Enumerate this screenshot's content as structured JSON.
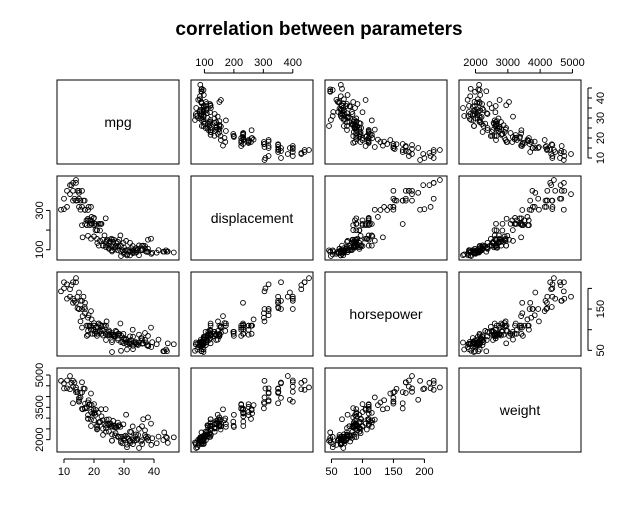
{
  "chart_data": {
    "type": "scatter",
    "title": "correlation between parameters",
    "variables": [
      "mpg",
      "displacement",
      "horsepower",
      "weight"
    ],
    "ranges": {
      "mpg": [
        9,
        47
      ],
      "displacement": [
        68,
        455
      ],
      "horsepower": [
        46,
        230
      ],
      "weight": [
        1613,
        5140
      ]
    },
    "ticks": {
      "mpg": [
        10,
        20,
        30,
        40
      ],
      "displacement": [
        100,
        200,
        300,
        400
      ],
      "horsepower": [
        50,
        100,
        150,
        200
      ],
      "weight": [
        2000,
        3000,
        4000,
        5000
      ]
    },
    "tick_labels": {
      "top": {
        "displacement": [
          "100",
          "200",
          "300",
          "400"
        ],
        "weight": [
          "2000",
          "3000",
          "4000",
          "5000"
        ]
      },
      "right": {
        "mpg": [
          "10",
          "20",
          "30",
          "40"
        ],
        "horsepower": [
          "50",
          "150"
        ]
      },
      "bottom": {
        "mpg": [
          "10",
          "20",
          "30",
          "40"
        ],
        "horsepower": [
          "50",
          "100",
          "150",
          "200"
        ]
      },
      "left": {
        "displacement": [
          "100",
          "300"
        ],
        "weight": [
          "2000",
          "3500",
          "5000"
        ]
      }
    },
    "left_tick_values": {
      "displacement": [
        100,
        200,
        300
      ],
      "weight": [
        2000,
        2500,
        3000,
        3500,
        4000,
        4500,
        5000
      ]
    },
    "right_tick_values": {
      "mpg": [
        10,
        15,
        20,
        25,
        30,
        35,
        40,
        45
      ],
      "horsepower": [
        50,
        100,
        150,
        200
      ]
    },
    "bottom_tick_values": {
      "mpg": [
        10,
        20,
        30,
        40
      ],
      "horsepower": [
        50,
        100,
        150,
        200
      ]
    },
    "top_tick_values": {
      "displacement": [
        100,
        200,
        300,
        400
      ],
      "weight": [
        2000,
        3000,
        4000,
        5000
      ]
    },
    "points": [
      [
        46.6,
        86,
        65,
        2110
      ],
      [
        44.6,
        91,
        67,
        1850
      ],
      [
        44.3,
        90,
        48,
        2085
      ],
      [
        44.0,
        97,
        52,
        2130
      ],
      [
        43.4,
        90,
        48,
        2335
      ],
      [
        43.1,
        90,
        48,
        1985
      ],
      [
        41.5,
        98,
        76,
        2144
      ],
      [
        40.9,
        85,
        65,
        1835
      ],
      [
        39.4,
        85,
        70,
        2070
      ],
      [
        39.1,
        79,
        58,
        1755
      ],
      [
        38.0,
        105,
        63,
        2125
      ],
      [
        38.1,
        89,
        60,
        1968
      ],
      [
        37.7,
        89,
        62,
        2050
      ],
      [
        37.3,
        91,
        69,
        2130
      ],
      [
        37.0,
        119,
        92,
        2434
      ],
      [
        36.4,
        121,
        67,
        2950
      ],
      [
        36.1,
        98,
        66,
        1800
      ],
      [
        36.0,
        105,
        74,
        1980
      ],
      [
        35.7,
        98,
        80,
        1915
      ],
      [
        35.0,
        122,
        88,
        2500
      ],
      [
        34.7,
        105,
        63,
        2215
      ],
      [
        34.4,
        98,
        65,
        2045
      ],
      [
        34.1,
        86,
        65,
        1975
      ],
      [
        33.8,
        97,
        67,
        2145
      ],
      [
        33.5,
        85,
        70,
        1945
      ],
      [
        33.0,
        91,
        53,
        1795
      ],
      [
        32.9,
        119,
        100,
        2615
      ],
      [
        32.4,
        108,
        75,
        2350
      ],
      [
        32.0,
        91,
        67,
        1965
      ],
      [
        31.9,
        89,
        71,
        1925
      ],
      [
        31.5,
        98,
        68,
        2045
      ],
      [
        31.0,
        71,
        65,
        1773
      ],
      [
        30.7,
        145,
        76,
        3160
      ],
      [
        30.5,
        97,
        78,
        2190
      ],
      [
        30.0,
        111,
        80,
        2155
      ],
      [
        29.8,
        134,
        90,
        2711
      ],
      [
        29.5,
        97,
        71,
        1825
      ],
      [
        29.0,
        68,
        49,
        1867
      ],
      [
        28.8,
        173,
        115,
        2595
      ],
      [
        28.4,
        151,
        90,
        2670
      ],
      [
        28.0,
        140,
        86,
        2790
      ],
      [
        27.5,
        134,
        95,
        2560
      ],
      [
        27.2,
        119,
        97,
        2300
      ],
      [
        27.0,
        112,
        88,
        2640
      ],
      [
        26.6,
        151,
        84,
        2635
      ],
      [
        26.4,
        140,
        88,
        2870
      ],
      [
        26.0,
        97,
        46,
        1950
      ],
      [
        25.8,
        156,
        92,
        2620
      ],
      [
        25.5,
        140,
        89,
        2755
      ],
      [
        25.1,
        140,
        88,
        2720
      ],
      [
        25.0,
        110,
        87,
        2672
      ],
      [
        24.5,
        151,
        88,
        2740
      ],
      [
        24.2,
        146,
        120,
        2930
      ],
      [
        24.0,
        121,
        110,
        2660
      ],
      [
        23.9,
        260,
        90,
        3420
      ],
      [
        23.5,
        173,
        110,
        2725
      ],
      [
        23.0,
        122,
        86,
        2220
      ],
      [
        22.5,
        232,
        90,
        3085
      ],
      [
        22.4,
        231,
        110,
        3415
      ],
      [
        22.0,
        198,
        95,
        2833
      ],
      [
        21.6,
        121,
        115,
        2795
      ],
      [
        21.5,
        231,
        115,
        3245
      ],
      [
        21.1,
        134,
        95,
        2515
      ],
      [
        21.0,
        200,
        85,
        2587
      ],
      [
        20.6,
        231,
        105,
        3380
      ],
      [
        20.5,
        200,
        95,
        3155
      ],
      [
        20.2,
        232,
        90,
        3265
      ],
      [
        20.0,
        225,
        100,
        3651
      ],
      [
        19.9,
        260,
        110,
        3365
      ],
      [
        19.4,
        232,
        90,
        3210
      ],
      [
        19.2,
        267,
        125,
        3605
      ],
      [
        19.0,
        232,
        100,
        2634
      ],
      [
        18.6,
        225,
        110,
        3620
      ],
      [
        18.5,
        250,
        110,
        3645
      ],
      [
        18.2,
        318,
        135,
        3830
      ],
      [
        18.0,
        250,
        88,
        3139
      ],
      [
        17.6,
        225,
        85,
        3465
      ],
      [
        17.5,
        250,
        110,
        3520
      ],
      [
        17.0,
        302,
        140,
        3449
      ],
      [
        16.9,
        350,
        155,
        4360
      ],
      [
        16.5,
        350,
        180,
        4380
      ],
      [
        16.2,
        163,
        133,
        3410
      ],
      [
        16.0,
        318,
        150,
        4190
      ],
      [
        15.5,
        304,
        120,
        3962
      ],
      [
        15.0,
        318,
        150,
        3777
      ],
      [
        15.0,
        400,
        150,
        3761
      ],
      [
        14.5,
        351,
        152,
        4215
      ],
      [
        14.0,
        350,
        165,
        4209
      ],
      [
        14.0,
        455,
        225,
        4425
      ],
      [
        13.0,
        350,
        165,
        3693
      ],
      [
        13.0,
        400,
        175,
        4464
      ],
      [
        12.0,
        383,
        180,
        4955
      ],
      [
        12.0,
        429,
        198,
        4341
      ],
      [
        11.0,
        400,
        175,
        4746
      ],
      [
        11.0,
        318,
        210,
        4382
      ],
      [
        10.0,
        360,
        215,
        4615
      ],
      [
        10.0,
        307,
        200,
        4376
      ],
      [
        9.0,
        304,
        193,
        4732
      ],
      [
        13.0,
        440,
        215,
        4735
      ],
      [
        14.0,
        440,
        215,
        4312
      ],
      [
        15.0,
        390,
        190,
        3850
      ],
      [
        16.0,
        400,
        170,
        4668
      ],
      [
        17.0,
        304,
        150,
        3672
      ],
      [
        18.0,
        258,
        110,
        2962
      ],
      [
        19.0,
        250,
        100,
        3282
      ],
      [
        20.0,
        262,
        110,
        3221
      ],
      [
        21.0,
        155,
        107,
        2472
      ],
      [
        22.0,
        232,
        112,
        2835
      ],
      [
        23.0,
        151,
        110,
        2905
      ],
      [
        24.0,
        113,
        95,
        2372
      ],
      [
        25.0,
        104,
        95,
        2375
      ],
      [
        26.0,
        116,
        75,
        2246
      ],
      [
        27.0,
        101,
        83,
        2202
      ],
      [
        28.0,
        116,
        90,
        2123
      ],
      [
        29.0,
        90,
        70,
        1937
      ],
      [
        30.0,
        79,
        67,
        2000
      ],
      [
        31.0,
        76,
        52,
        1649
      ],
      [
        32.0,
        71,
        65,
        1836
      ],
      [
        33.0,
        83,
        61,
        2003
      ],
      [
        34.0,
        108,
        70,
        2245
      ],
      [
        35.0,
        72,
        69,
        1613
      ],
      [
        36.0,
        120,
        79,
        2625
      ],
      [
        37.0,
        107,
        75,
        2205
      ],
      [
        38.0,
        151,
        85,
        3035
      ],
      [
        39.0,
        156,
        105,
        2745
      ],
      [
        16.0,
        225,
        105,
        3439
      ],
      [
        17.0,
        231,
        165,
        3445
      ],
      [
        18.0,
        302,
        129,
        3725
      ],
      [
        19.0,
        318,
        145,
        4140
      ],
      [
        15.5,
        350,
        170,
        4165
      ],
      [
        14.5,
        400,
        180,
        4220
      ],
      [
        13.5,
        360,
        170,
        4654
      ],
      [
        12.5,
        429,
        208,
        4633
      ],
      [
        15.0,
        360,
        150,
        3940
      ],
      [
        24.0,
        140,
        75,
        2542
      ],
      [
        26.0,
        91,
        70,
        1955
      ],
      [
        28.0,
        97,
        75,
        2155
      ],
      [
        30.0,
        88,
        76,
        2065
      ],
      [
        27.0,
        112,
        85,
        2575
      ],
      [
        22.0,
        146,
        97,
        2815
      ],
      [
        20.0,
        168,
        116,
        2900
      ],
      [
        18.0,
        171,
        97,
        2984
      ],
      [
        19.0,
        156,
        108,
        2930
      ],
      [
        21.0,
        199,
        90,
        2648
      ],
      [
        23.0,
        120,
        97,
        2506
      ],
      [
        25.0,
        121,
        98,
        2945
      ],
      [
        29.0,
        120,
        87,
        2130
      ],
      [
        31.0,
        98,
        70,
        2120
      ],
      [
        33.0,
        98,
        83,
        2075
      ],
      [
        32.0,
        135,
        84,
        2370
      ],
      [
        28.0,
        120,
        79,
        2625
      ],
      [
        26.0,
        151,
        88,
        2605
      ]
    ]
  }
}
